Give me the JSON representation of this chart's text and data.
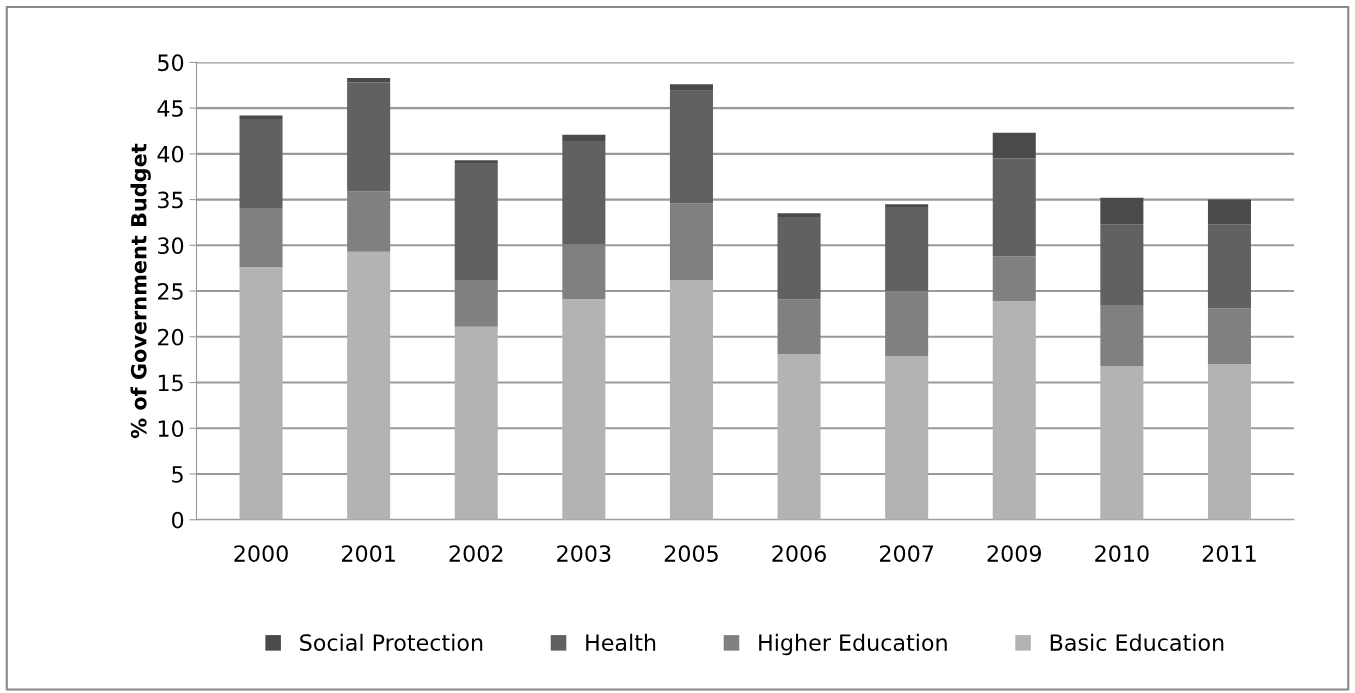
{
  "chart_data": {
    "type": "bar",
    "stacked": true,
    "ylabel": "% of Government Budget",
    "categories": [
      "2000",
      "2001",
      "2002",
      "2003",
      "2005",
      "2006",
      "2007",
      "2009",
      "2010",
      "2011"
    ],
    "series": [
      {
        "name": "Basic Education",
        "color": "#b3b3b3",
        "values": [
          27.6,
          29.3,
          21.1,
          24.1,
          26.2,
          18.1,
          17.9,
          23.9,
          16.8,
          17.0
        ]
      },
      {
        "name": "Higher Education",
        "color": "#808080",
        "values": [
          6.4,
          6.6,
          5.1,
          6.0,
          8.4,
          6.0,
          7.1,
          4.9,
          6.6,
          6.1
        ]
      },
      {
        "name": "Health",
        "color": "#616161",
        "values": [
          9.8,
          11.9,
          12.8,
          11.3,
          12.3,
          9.0,
          9.2,
          10.7,
          8.9,
          9.2
        ]
      },
      {
        "name": "Social Protection",
        "color": "#4a4a4a",
        "values": [
          0.4,
          0.5,
          0.3,
          0.7,
          0.7,
          0.4,
          0.3,
          2.8,
          2.9,
          2.7
        ]
      }
    ],
    "ylim": [
      0,
      50
    ],
    "yticks": [
      0,
      5,
      10,
      15,
      20,
      25,
      30,
      35,
      40,
      45,
      50
    ],
    "grid": "y",
    "legend": "bottom"
  }
}
